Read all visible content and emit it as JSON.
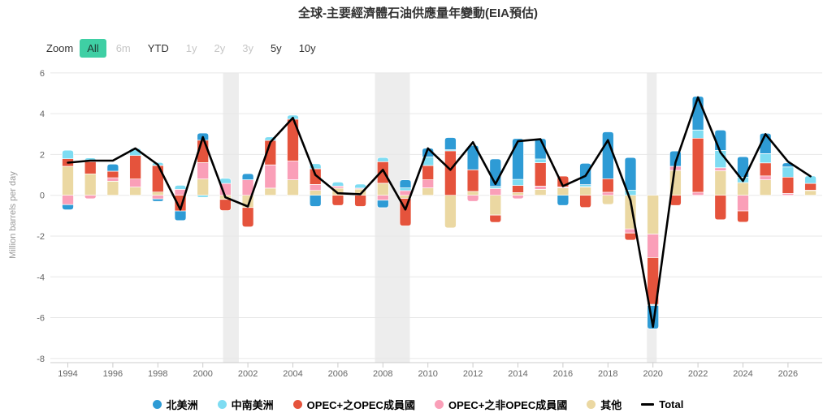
{
  "title": "全球-主要經濟體石油供應量年變動(EIA預估)",
  "toolbar": {
    "zoom_label": "Zoom",
    "buttons": [
      {
        "label": "All",
        "state": "active"
      },
      {
        "label": "6m",
        "state": "disabled"
      },
      {
        "label": "YTD",
        "state": "normal"
      },
      {
        "label": "1y",
        "state": "disabled"
      },
      {
        "label": "2y",
        "state": "disabled"
      },
      {
        "label": "3y",
        "state": "disabled"
      },
      {
        "label": "5y",
        "state": "normal"
      },
      {
        "label": "10y",
        "state": "normal"
      }
    ]
  },
  "chart_data": {
    "type": "bar",
    "subtype": "stacked-columns-with-total-line",
    "title": "全球-主要經濟體石油供應量年變動(EIA預估)",
    "ylabel": "Million barrels per day",
    "ylim": [
      -8,
      6
    ],
    "yticks": [
      6,
      4,
      2,
      0,
      -2,
      -4,
      -6,
      -8
    ],
    "xticks": [
      1994,
      1996,
      1998,
      2000,
      2002,
      2004,
      2006,
      2008,
      2010,
      2012,
      2014,
      2016,
      2018,
      2020,
      2022,
      2024,
      2026
    ],
    "grid_on": true,
    "legend_position": "bottom",
    "colors": {
      "grid": "#e7e7e7",
      "axis_line": "#cccccc",
      "tick_label": "#666666",
      "axis_title": "#999999",
      "recession_band": "#ededed",
      "range_active_bg": "#3fcfa4"
    },
    "recession_bands_years": [
      [
        2001.15,
        2001.85
      ],
      [
        2007.9,
        2009.45
      ],
      [
        2019.98,
        2020.42
      ]
    ],
    "years": [
      1994,
      1995,
      1996,
      1997,
      1998,
      1999,
      2000,
      2001,
      2002,
      2003,
      2004,
      2005,
      2006,
      2007,
      2008,
      2009,
      2010,
      2011,
      2012,
      2013,
      2014,
      2015,
      2016,
      2017,
      2018,
      2019,
      2020,
      2021,
      2022,
      2023,
      2024,
      2025,
      2026,
      2027
    ],
    "series": [
      {
        "name": "北美洲",
        "slug": "north-america",
        "color": "#2e9bd5",
        "values": [
          -0.25,
          0,
          0.35,
          0,
          -0.12,
          -0.47,
          0.35,
          0,
          0.3,
          0,
          0,
          -0.55,
          0,
          0,
          -0.37,
          0.4,
          0.43,
          0.6,
          1.2,
          1.35,
          2.0,
          1.0,
          -0.5,
          1.05,
          2.3,
          1.6,
          -1.15,
          0.75,
          1.65,
          1.0,
          1.0,
          1.0,
          0.2,
          0
        ]
      },
      {
        "name": "中南美洲",
        "slug": "central-south-america",
        "color": "#7edcf2",
        "values": [
          0.42,
          0.18,
          0,
          0.35,
          0.15,
          0.2,
          -0.1,
          0.25,
          0,
          0.17,
          0.2,
          0.25,
          0.2,
          0.2,
          0.2,
          0.13,
          0.42,
          0.05,
          0,
          0.1,
          0.3,
          0.18,
          0,
          0.1,
          0,
          0.25,
          -0.05,
          0,
          0.4,
          0.85,
          0.27,
          0.45,
          0.5,
          0.37
        ]
      },
      {
        "name": "OPEC+之OPEC成員國",
        "slug": "opec-members",
        "color": "#e5533c",
        "values": [
          0.37,
          0.6,
          0.32,
          1.15,
          1.3,
          -0.77,
          1.1,
          -0.55,
          -0.95,
          1.2,
          2.05,
          0.77,
          -0.5,
          -0.55,
          1.06,
          -1.35,
          0.7,
          2.18,
          1.06,
          -0.36,
          0.35,
          1.15,
          0.53,
          -0.6,
          0.66,
          -0.35,
          -2.3,
          -0.5,
          2.65,
          -1.2,
          -0.55,
          0.64,
          0.8,
          0.33
        ]
      },
      {
        "name": "OPEC+之非OPEC成員國",
        "slug": "non-opec-members",
        "color": "#fa9fb8",
        "values": [
          -0.46,
          -0.17,
          0.17,
          0.4,
          -0.18,
          0.29,
          0.8,
          0.58,
          0.76,
          1.14,
          0.92,
          0.29,
          0.1,
          0.05,
          -0.24,
          0.23,
          0.4,
          0,
          -0.3,
          0.33,
          -0.17,
          0.16,
          0.05,
          0.02,
          0.15,
          -0.2,
          -1.15,
          0.2,
          0.15,
          0.15,
          -0.77,
          0.19,
          0.09,
          0.02
        ]
      },
      {
        "name": "其他",
        "slug": "others",
        "color": "#ebd8a2",
        "values": [
          1.42,
          1.05,
          0.69,
          0.4,
          0.16,
          0,
          0.8,
          -0.2,
          -0.6,
          0.35,
          0.76,
          0.24,
          0.35,
          0.3,
          0.59,
          -0.15,
          0.36,
          -1.6,
          0.19,
          -0.97,
          0.13,
          0.29,
          0.36,
          0.4,
          -0.45,
          -1.65,
          -1.9,
          1.22,
          0,
          1.2,
          0.62,
          0.76,
          0,
          0.23
        ]
      }
    ],
    "total_line": {
      "name": "Total",
      "color": "#000000",
      "values": [
        1.6,
        1.7,
        1.7,
        2.3,
        1.5,
        -0.7,
        2.85,
        -0.1,
        -0.55,
        2.6,
        3.8,
        1.0,
        0.1,
        0.05,
        1.25,
        -0.7,
        2.3,
        1.25,
        2.6,
        0.55,
        2.65,
        2.75,
        0.45,
        0.95,
        2.7,
        -0.25,
        -6.45,
        1.6,
        4.8,
        2.1,
        0.7,
        3.0,
        1.65,
        0.93
      ]
    }
  }
}
